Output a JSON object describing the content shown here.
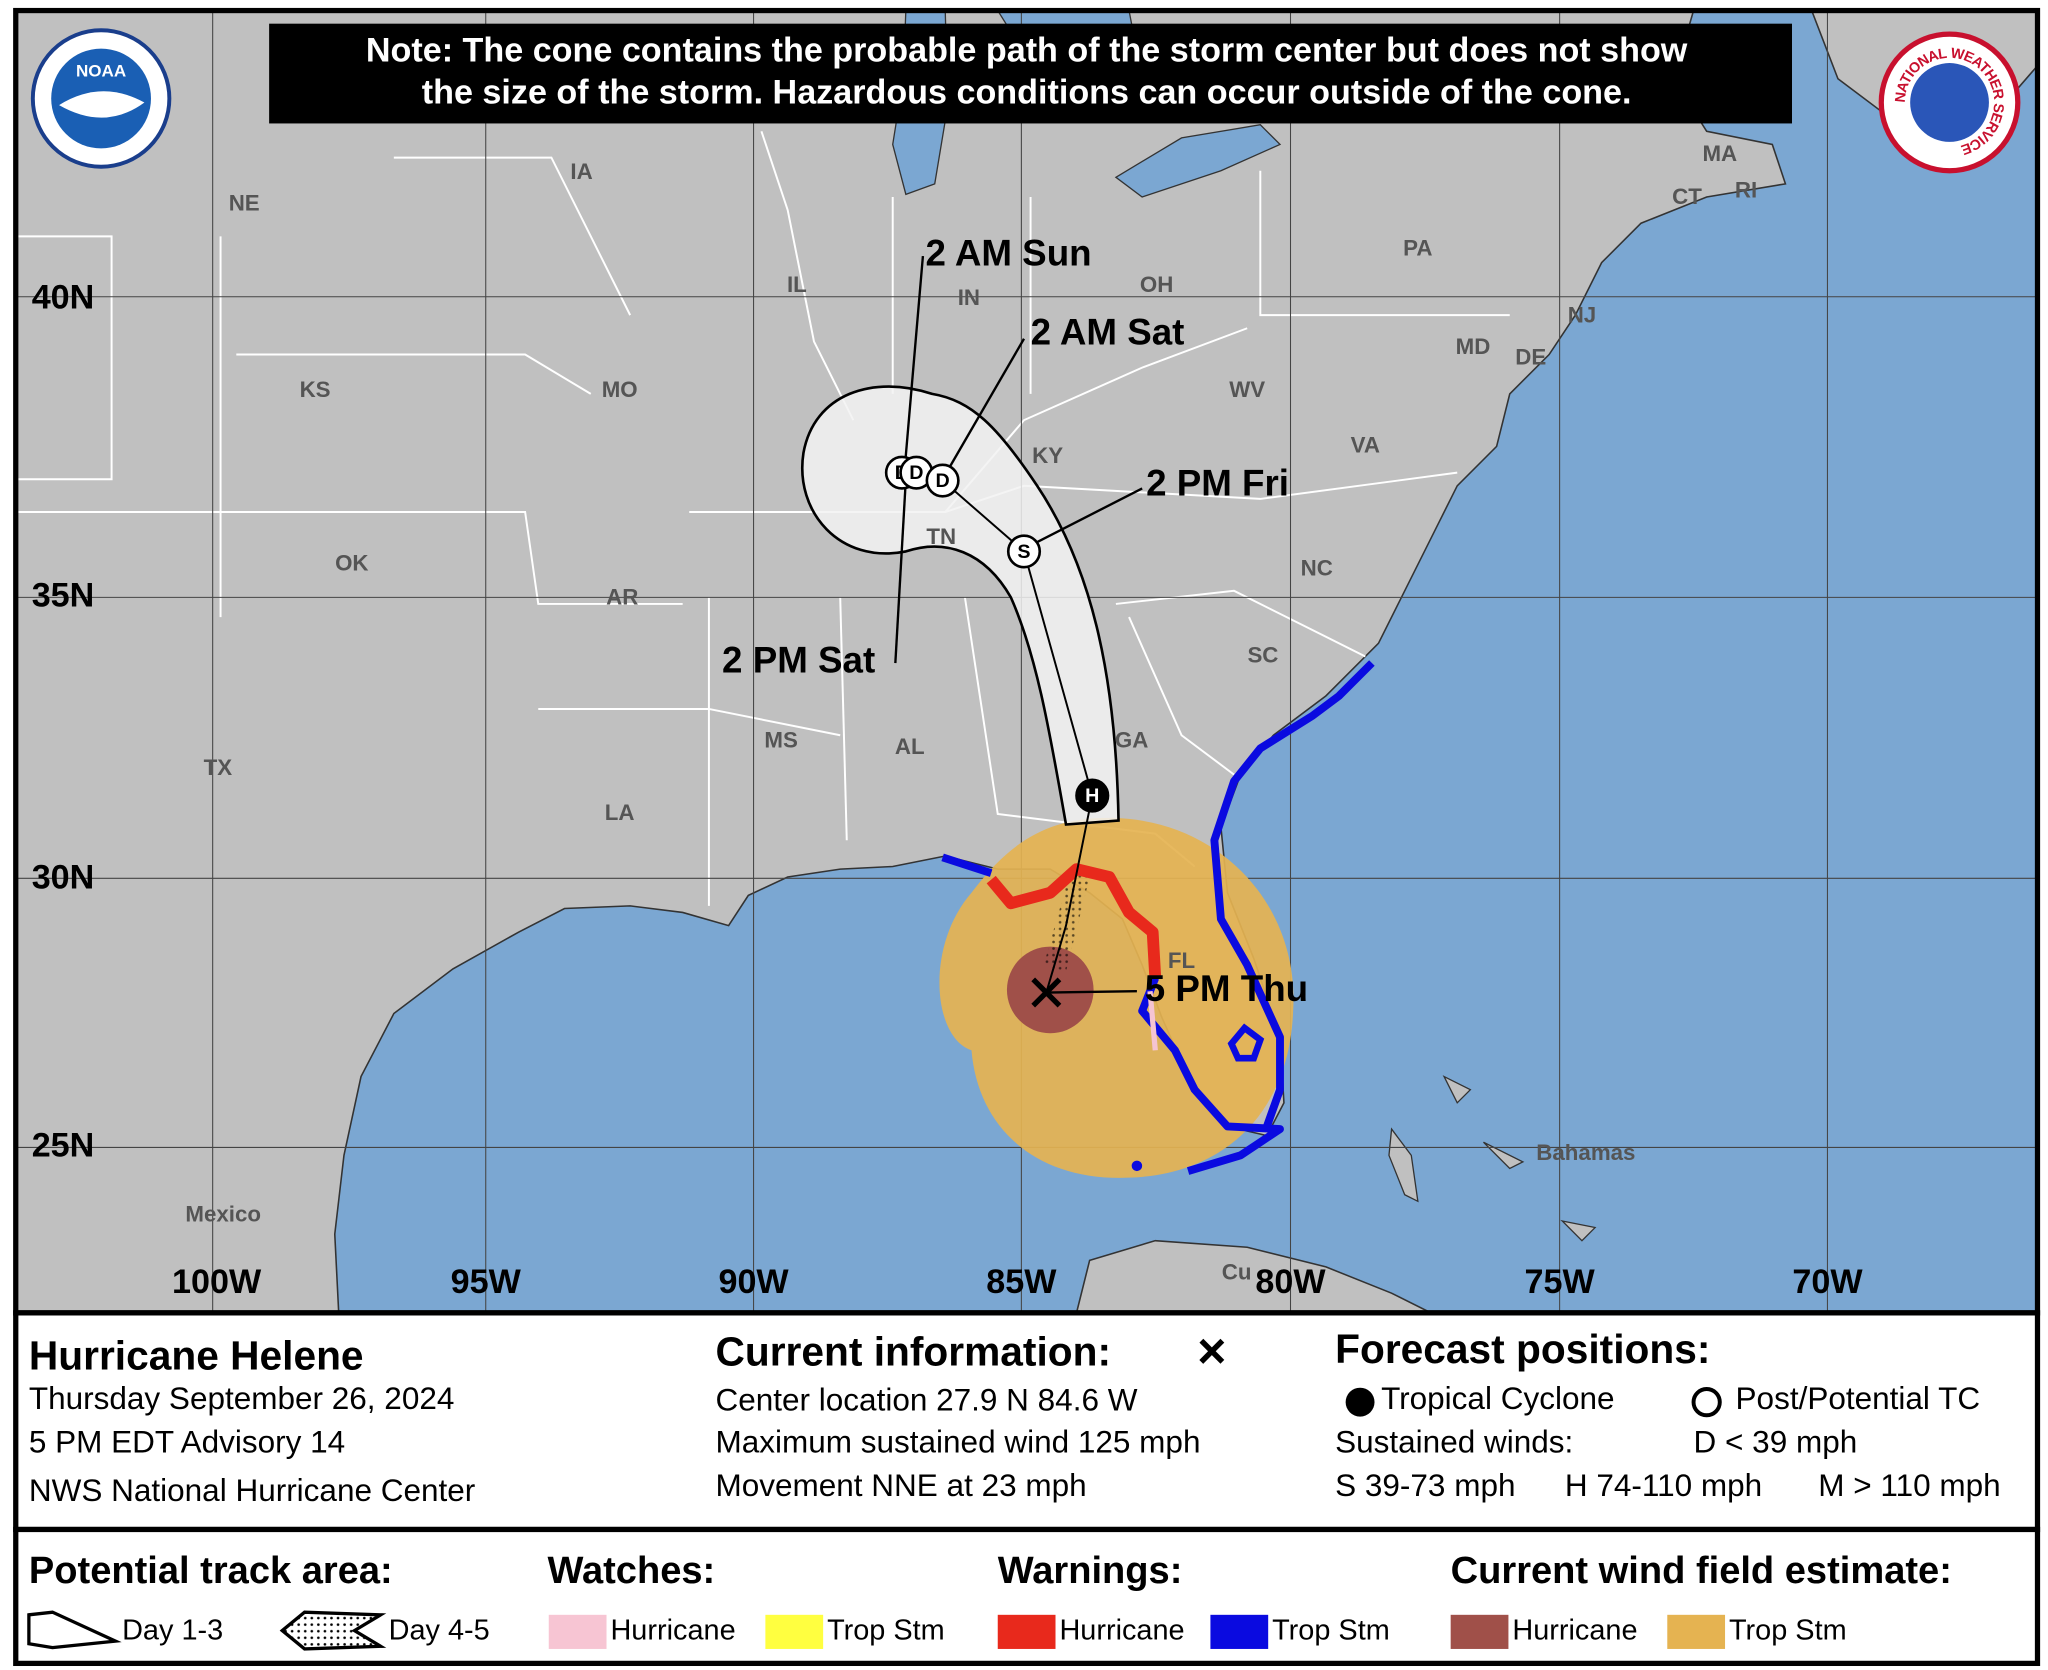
{
  "note": [
    "Note: The cone contains the probable path of the storm center but does not show",
    "the size of the storm. Hazardous conditions can occur outside of the cone."
  ],
  "logos": {
    "noaa": "NOAA",
    "nws": "NATIONAL WEATHER SERVICE"
  },
  "map": {
    "latitude_labels": [
      "40N",
      "35N",
      "30N",
      "25N"
    ],
    "longitude_labels": [
      "100W",
      "95W",
      "90W",
      "85W",
      "80W",
      "75W",
      "70W"
    ],
    "region_labels": [
      "NE",
      "IA",
      "IL",
      "IN",
      "OH",
      "PA",
      "KS",
      "MO",
      "KY",
      "WV",
      "VA",
      "OK",
      "AR",
      "TN",
      "NC",
      "SC",
      "TX",
      "MS",
      "AL",
      "GA",
      "LA",
      "FL",
      "MA",
      "CT",
      "RI",
      "NJ",
      "MD",
      "DE",
      "Mexico",
      "Bahamas",
      "Cu"
    ],
    "forecast_times": [
      "2 AM Sun",
      "2 AM Sat",
      "2 PM Fri",
      "2 PM Sat",
      "5 PM Thu"
    ],
    "position_markers": [
      "D",
      "D",
      "D",
      "S",
      "H"
    ]
  },
  "storm": {
    "name": "Hurricane Helene",
    "date": "Thursday September 26, 2024",
    "advisory": "5 PM EDT Advisory 14",
    "center": "NWS National Hurricane Center"
  },
  "current_information": {
    "title": "Current information:",
    "symbol": "×",
    "lines": [
      "Center location 27.9 N 84.6 W",
      "Maximum sustained wind 125 mph",
      "Movement NNE at 23 mph"
    ]
  },
  "forecast_positions": {
    "title": "Forecast positions:",
    "tropical_cyclone": "Tropical Cyclone",
    "post_potential": "Post/Potential TC",
    "sustained_winds": "Sustained winds:",
    "d": "D < 39 mph",
    "s": "S 39-73 mph",
    "h": "H 74-110 mph",
    "m": "M > 110 mph"
  },
  "legend": {
    "track_area": {
      "title": "Potential track area:",
      "items": [
        "Day 1-3",
        "Day 4-5"
      ]
    },
    "watches": {
      "title": "Watches:",
      "items": [
        "Hurricane",
        "Trop Stm"
      ]
    },
    "warnings": {
      "title": "Warnings:",
      "items": [
        "Hurricane",
        "Trop Stm"
      ]
    },
    "wind_field": {
      "title": "Current wind field estimate:",
      "items": [
        "Hurricane",
        "Trop Stm"
      ]
    }
  }
}
